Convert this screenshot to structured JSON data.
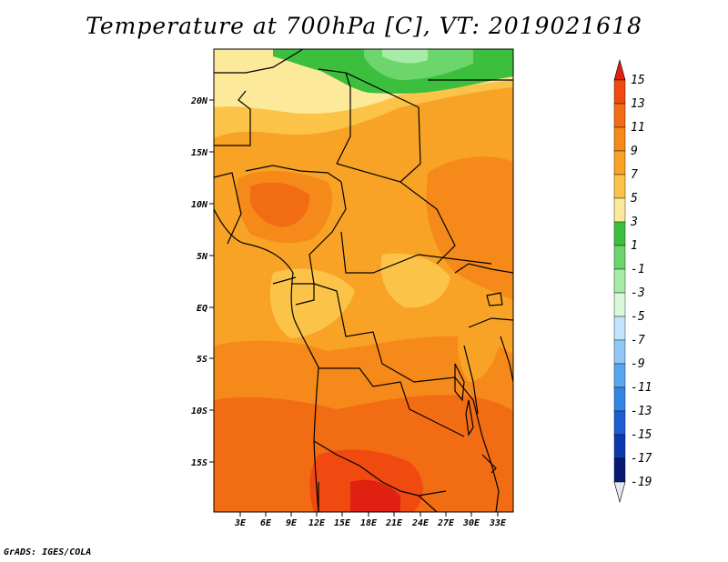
{
  "title": "Temperature at 700hPa [C], VT: 2019021618",
  "credit": "GrADS: IGES/COLA",
  "map": {
    "lat_labels": [
      "20N",
      "15N",
      "10N",
      "5N",
      "EQ",
      "5S",
      "10S",
      "15S"
    ],
    "lon_labels": [
      "3E",
      "6E",
      "9E",
      "12E",
      "15E",
      "18E",
      "21E",
      "24E",
      "27E",
      "30E",
      "33E"
    ]
  },
  "colorbar": {
    "labels": [
      "15",
      "13",
      "11",
      "9",
      "7",
      "5",
      "3",
      "1",
      "-1",
      "-3",
      "-5",
      "-7",
      "-9",
      "-11",
      "-13",
      "-15",
      "-17",
      "-19"
    ],
    "colors": [
      "#e02010",
      "#f04a10",
      "#f26c14",
      "#f58a1a",
      "#f9a326",
      "#fbc449",
      "#fde99a",
      "#3cbf3c",
      "#6cd66c",
      "#a6eca6",
      "#d8f8d8",
      "#c0e4fb",
      "#90c8f5",
      "#5aa6ee",
      "#3484e4",
      "#1c5ed2",
      "#0c3aac",
      "#081a74"
    ]
  }
}
